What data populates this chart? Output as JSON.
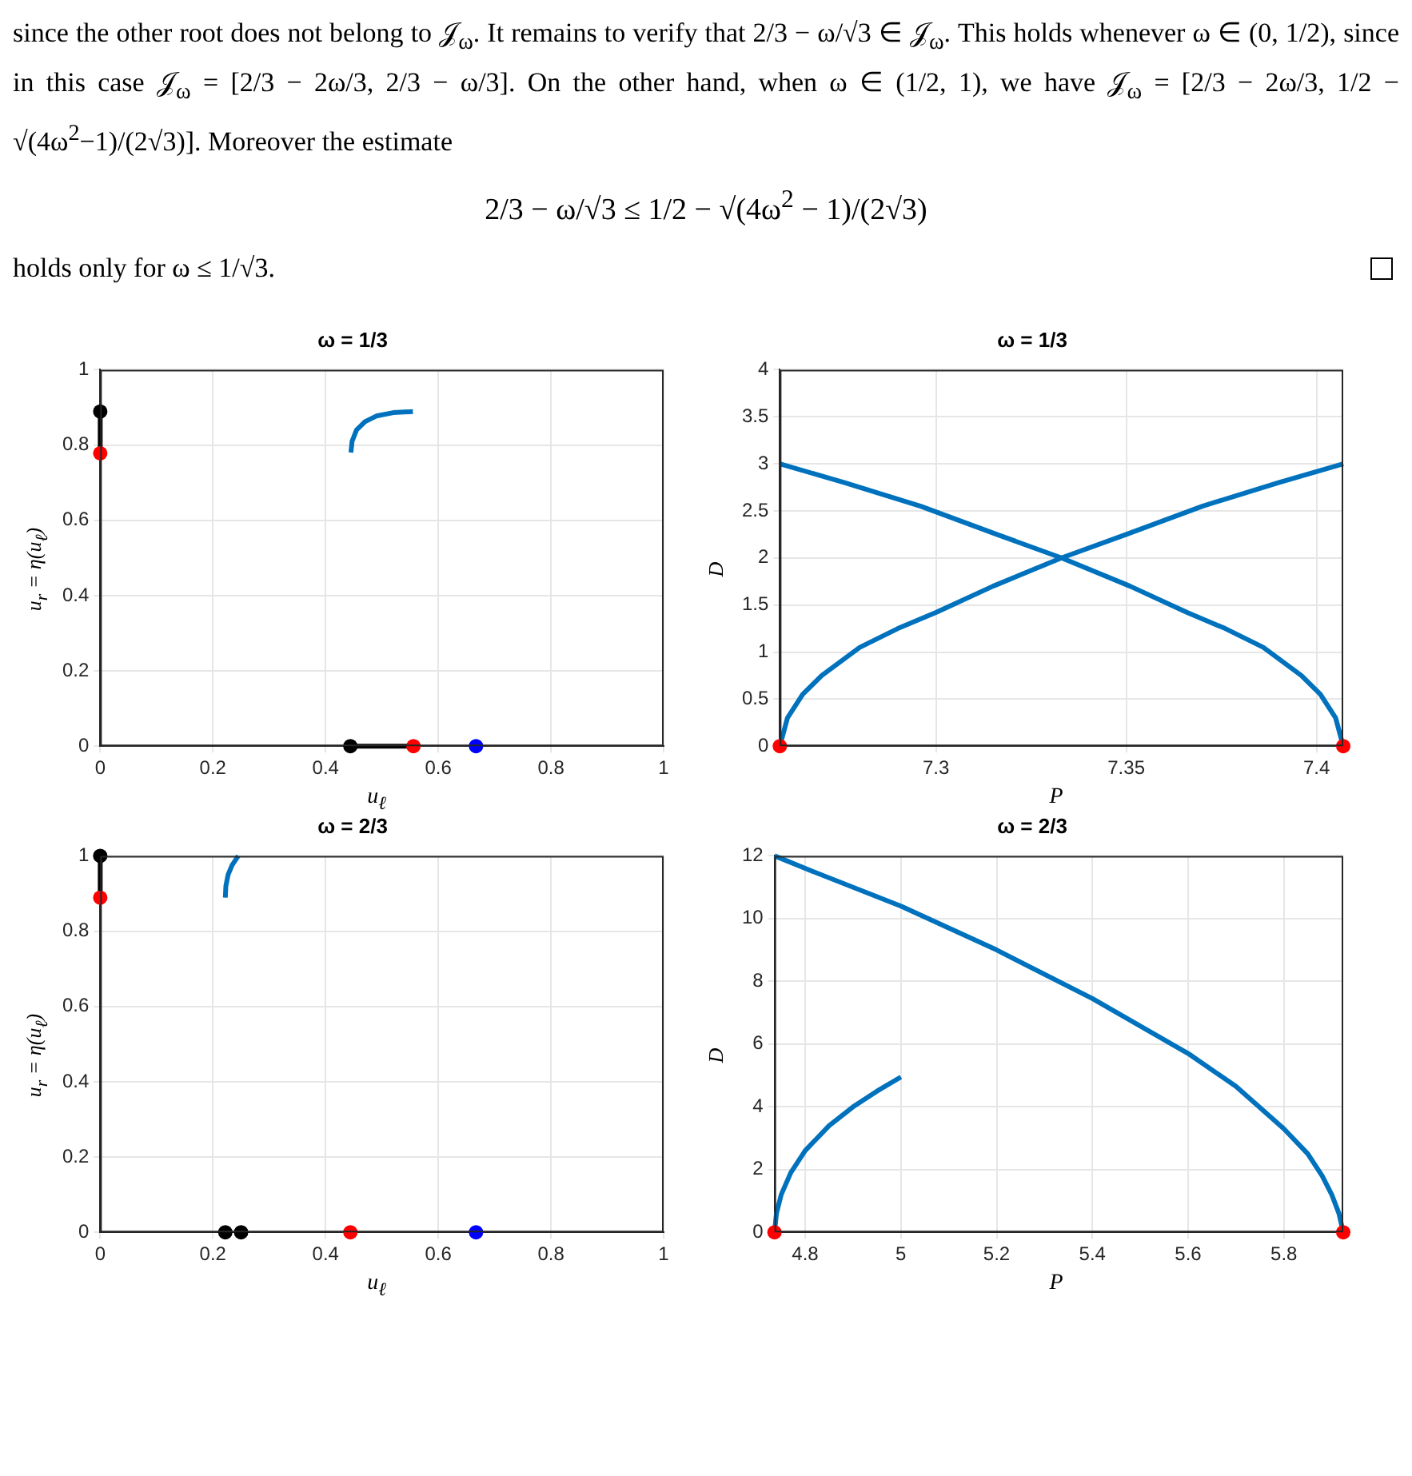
{
  "chart_data": [
    {
      "type": "line",
      "title": "ω = 1/3",
      "xlabel": "u$_{ℓ}$",
      "ylabel": "u$_{r}$ = η(u$_{ℓ}$)",
      "annotations": [
        "since the other root does not belong to 𝒥$_{ω}$. It remains to verify that 2/3 − ω/√3 ∈ 𝒥$_{ω}$. This holds whenever ω ∈ (0, 1/2), since in this case 𝒥$_{ω}$ = [2/3 − 2ω/3, 2/3 − ω/3]. On the other hand, when ω ∈ (1/2, 1), we have 𝒥$_{ω}$ = [2/3 − 2ω/3, 1/2 − √(4ω$^{2}$−1)/(2√3)]. Moreover the estimate",
        "2/3 − ω/√3 ≤ 1/2 − √(4ω$^{2}$ − 1)/(2√3)",
        "holds only for ω ≤ 1/√3."
      ],
      "xlim": [
        0,
        1
      ],
      "ylim": [
        0,
        1
      ],
      "xticks": [
        0,
        0.2,
        0.4,
        0.6,
        0.8,
        1
      ],
      "yticks": [
        0,
        0.2,
        0.4,
        0.6,
        0.8,
        1
      ],
      "grid": true,
      "legend": false,
      "series": [
        {
          "type": "line",
          "color": "#0072bd",
          "marker": "none",
          "x": [
            0.445,
            0.447,
            0.455,
            0.47,
            0.49,
            0.52,
            0.555
          ],
          "values": [
            0.78,
            0.81,
            0.84,
            0.862,
            0.877,
            0.886,
            0.889
          ]
        },
        {
          "type": "line",
          "color": "#000000",
          "marker": "none",
          "x": [
            0,
            0
          ],
          "values": [
            0.778,
            0.889
          ]
        },
        {
          "type": "line",
          "color": "#000000",
          "marker": "none",
          "x": [
            0.444,
            0.556
          ],
          "values": [
            0,
            0
          ]
        },
        {
          "type": "scatter",
          "color": "#000000",
          "marker": "circle",
          "x": [
            0,
            0.444
          ],
          "values": [
            0.889,
            0
          ]
        },
        {
          "type": "scatter",
          "color": "#ff0000",
          "marker": "circle",
          "x": [
            0,
            0.556
          ],
          "values": [
            0.778,
            0
          ]
        },
        {
          "type": "scatter",
          "color": "#0000ff",
          "marker": "circle",
          "x": [
            0.667
          ],
          "values": [
            0
          ]
        }
      ]
    },
    {
      "type": "line",
      "title": "ω = 1/3",
      "xlabel": "P",
      "ylabel": "D",
      "xlim": [
        7.259,
        7.407
      ],
      "ylim": [
        0,
        4
      ],
      "xticks": [
        7.3,
        7.35,
        7.4
      ],
      "yticks": [
        0,
        0.5,
        1,
        1.5,
        2,
        2.5,
        3,
        3.5,
        4
      ],
      "grid": true,
      "legend": false,
      "series": [
        {
          "type": "line",
          "color": "#0072bd",
          "marker": "none",
          "x": [
            7.259,
            7.261,
            7.265,
            7.27,
            7.28,
            7.29,
            7.3,
            7.315,
            7.333,
            7.35,
            7.37,
            7.39,
            7.407
          ],
          "values": [
            0,
            0.3,
            0.55,
            0.75,
            1.05,
            1.25,
            1.42,
            1.7,
            2.0,
            2.25,
            2.55,
            2.8,
            3
          ]
        },
        {
          "type": "line",
          "color": "#0072bd",
          "marker": "none",
          "x": [
            7.259,
            7.276,
            7.296,
            7.316,
            7.333,
            7.351,
            7.366,
            7.376,
            7.386,
            7.396,
            7.401,
            7.405,
            7.407
          ],
          "values": [
            3,
            2.8,
            2.55,
            2.25,
            2.0,
            1.7,
            1.42,
            1.25,
            1.05,
            0.75,
            0.55,
            0.3,
            0
          ]
        },
        {
          "type": "scatter",
          "color": "#ff0000",
          "marker": "circle",
          "x": [
            7.259,
            7.407
          ],
          "values": [
            0,
            0
          ]
        }
      ]
    },
    {
      "type": "line",
      "title": "ω = 2/3",
      "xlabel": "u$_{ℓ}$",
      "ylabel": "u$_{r}$ = η(u$_{ℓ}$)",
      "xlim": [
        0,
        1
      ],
      "ylim": [
        0,
        1
      ],
      "xticks": [
        0,
        0.2,
        0.4,
        0.6,
        0.8,
        1
      ],
      "yticks": [
        0,
        0.2,
        0.4,
        0.6,
        0.8,
        1
      ],
      "grid": true,
      "legend": false,
      "series": [
        {
          "type": "line",
          "color": "#0072bd",
          "marker": "none",
          "x": [
            0.222,
            0.223,
            0.227,
            0.234,
            0.245
          ],
          "values": [
            0.889,
            0.92,
            0.95,
            0.975,
            1
          ]
        },
        {
          "type": "line",
          "color": "#000000",
          "marker": "none",
          "x": [
            0,
            0
          ],
          "values": [
            0.889,
            1
          ]
        },
        {
          "type": "scatter",
          "color": "#000000",
          "marker": "circle",
          "x": [
            0,
            0.222,
            0.25
          ],
          "values": [
            1,
            0,
            0
          ]
        },
        {
          "type": "scatter",
          "color": "#ff0000",
          "marker": "circle",
          "x": [
            0,
            0.444
          ],
          "values": [
            0.889,
            0
          ]
        },
        {
          "type": "scatter",
          "color": "#0000ff",
          "marker": "circle",
          "x": [
            0.667
          ],
          "values": [
            0
          ]
        }
      ]
    },
    {
      "type": "line",
      "title": "ω = 2/3",
      "xlabel": "P",
      "ylabel": "D",
      "xlim": [
        4.736,
        5.924
      ],
      "ylim": [
        0,
        12
      ],
      "xticks": [
        4.8,
        5,
        5.2,
        5.4,
        5.6,
        5.8
      ],
      "yticks": [
        0,
        2,
        4,
        6,
        8,
        10,
        12
      ],
      "grid": true,
      "legend": false,
      "series": [
        {
          "type": "line",
          "color": "#0072bd",
          "marker": "none",
          "x": [
            4.736,
            4.8,
            5,
            5.2,
            5.4,
            5.6,
            5.7,
            5.8,
            5.85,
            5.88,
            5.9,
            5.915,
            5.924
          ],
          "values": [
            12,
            11.6,
            10.4,
            9.0,
            7.45,
            5.7,
            4.65,
            3.3,
            2.5,
            1.8,
            1.2,
            0.6,
            0
          ]
        },
        {
          "type": "line",
          "color": "#0072bd",
          "marker": "none",
          "x": [
            4.736,
            4.74,
            4.75,
            4.77,
            4.8,
            4.85,
            4.9,
            4.95,
            5.0
          ],
          "values": [
            0,
            0.6,
            1.2,
            1.9,
            2.6,
            3.4,
            4.0,
            4.5,
            4.95
          ]
        },
        {
          "type": "scatter",
          "color": "#ff0000",
          "marker": "circle",
          "x": [
            4.736,
            5.924
          ],
          "values": [
            0,
            0
          ]
        }
      ]
    }
  ]
}
